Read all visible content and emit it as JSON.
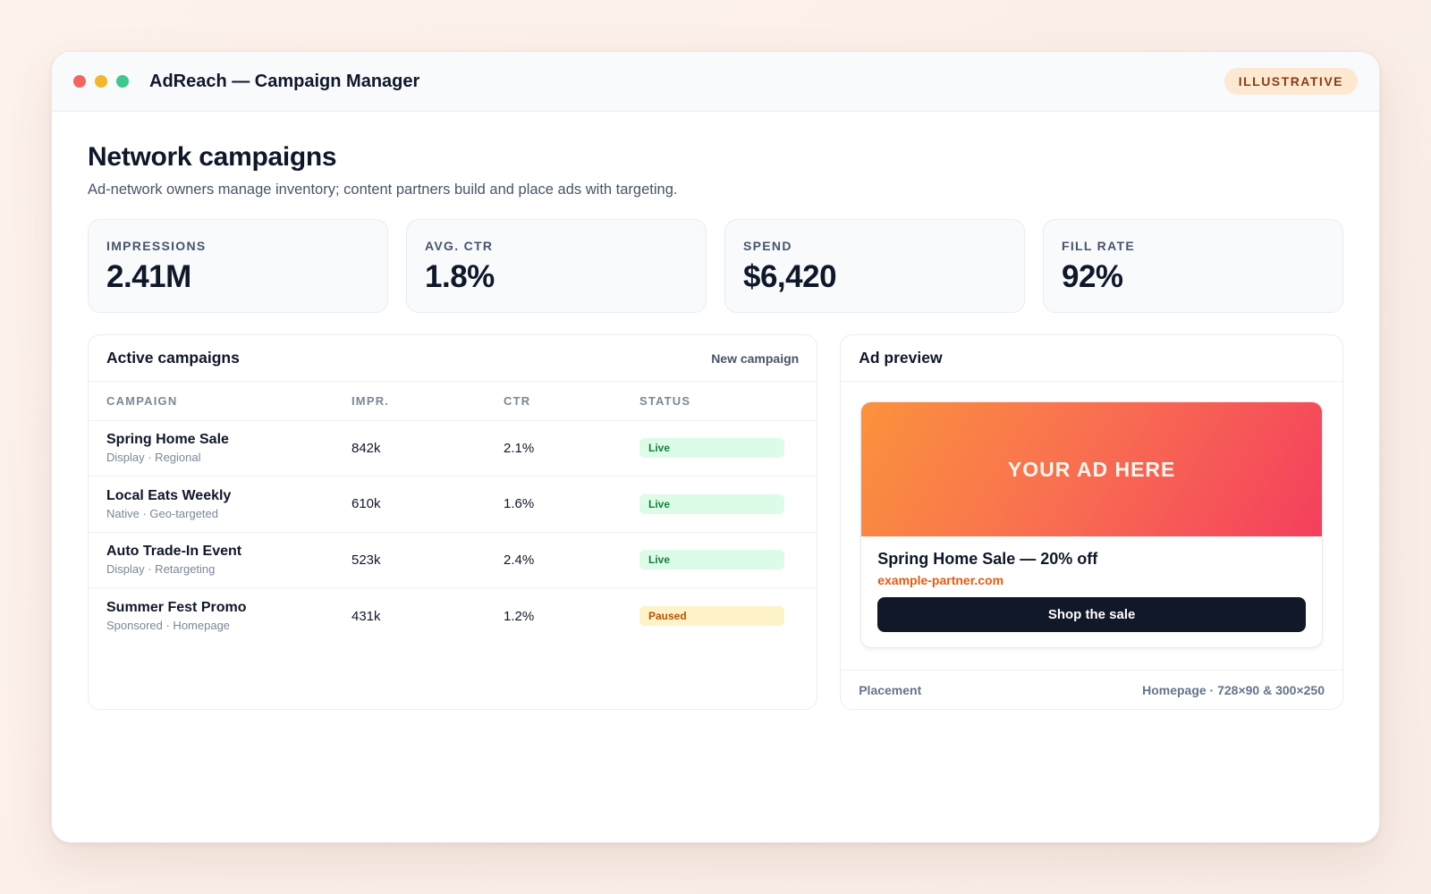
{
  "window": {
    "title": "AdReach — Campaign Manager",
    "badge": "ILLUSTRATIVE"
  },
  "header": {
    "title": "Network campaigns",
    "subtitle": "Ad-network owners manage inventory; content partners build and place ads with targeting."
  },
  "stats": [
    {
      "label": "IMPRESSIONS",
      "value": "2.41M"
    },
    {
      "label": "AVG. CTR",
      "value": "1.8%"
    },
    {
      "label": "SPEND",
      "value": "$6,420"
    },
    {
      "label": "FILL RATE",
      "value": "92%"
    }
  ],
  "campaigns": {
    "title": "Active campaigns",
    "new_label": "New campaign",
    "columns": [
      "CAMPAIGN",
      "IMPR.",
      "CTR",
      "STATUS"
    ],
    "rows": [
      {
        "name": "Spring Home Sale",
        "meta": "Display · Regional",
        "impr": "842k",
        "ctr": "2.1%",
        "status": "Live"
      },
      {
        "name": "Local Eats Weekly",
        "meta": "Native · Geo-targeted",
        "impr": "610k",
        "ctr": "1.6%",
        "status": "Live"
      },
      {
        "name": "Auto Trade-In Event",
        "meta": "Display · Retargeting",
        "impr": "523k",
        "ctr": "2.4%",
        "status": "Live"
      },
      {
        "name": "Summer Fest Promo",
        "meta": "Sponsored · Homepage",
        "impr": "431k",
        "ctr": "1.2%",
        "status": "Paused"
      }
    ]
  },
  "preview": {
    "title": "Ad preview",
    "banner_text": "YOUR AD HERE",
    "headline": "Spring Home Sale — 20% off",
    "domain": "example-partner.com",
    "cta": "Shop the sale",
    "placement_label": "Placement",
    "placement_value": "Homepage · 728×90 & 300×250"
  },
  "colors": {
    "live_bg": "#dcfce7",
    "live_text": "#15803d",
    "paused_bg": "#fef3c7",
    "paused_text": "#b45309",
    "accent_orange": "#ea580c",
    "cta_bg": "#111827"
  }
}
